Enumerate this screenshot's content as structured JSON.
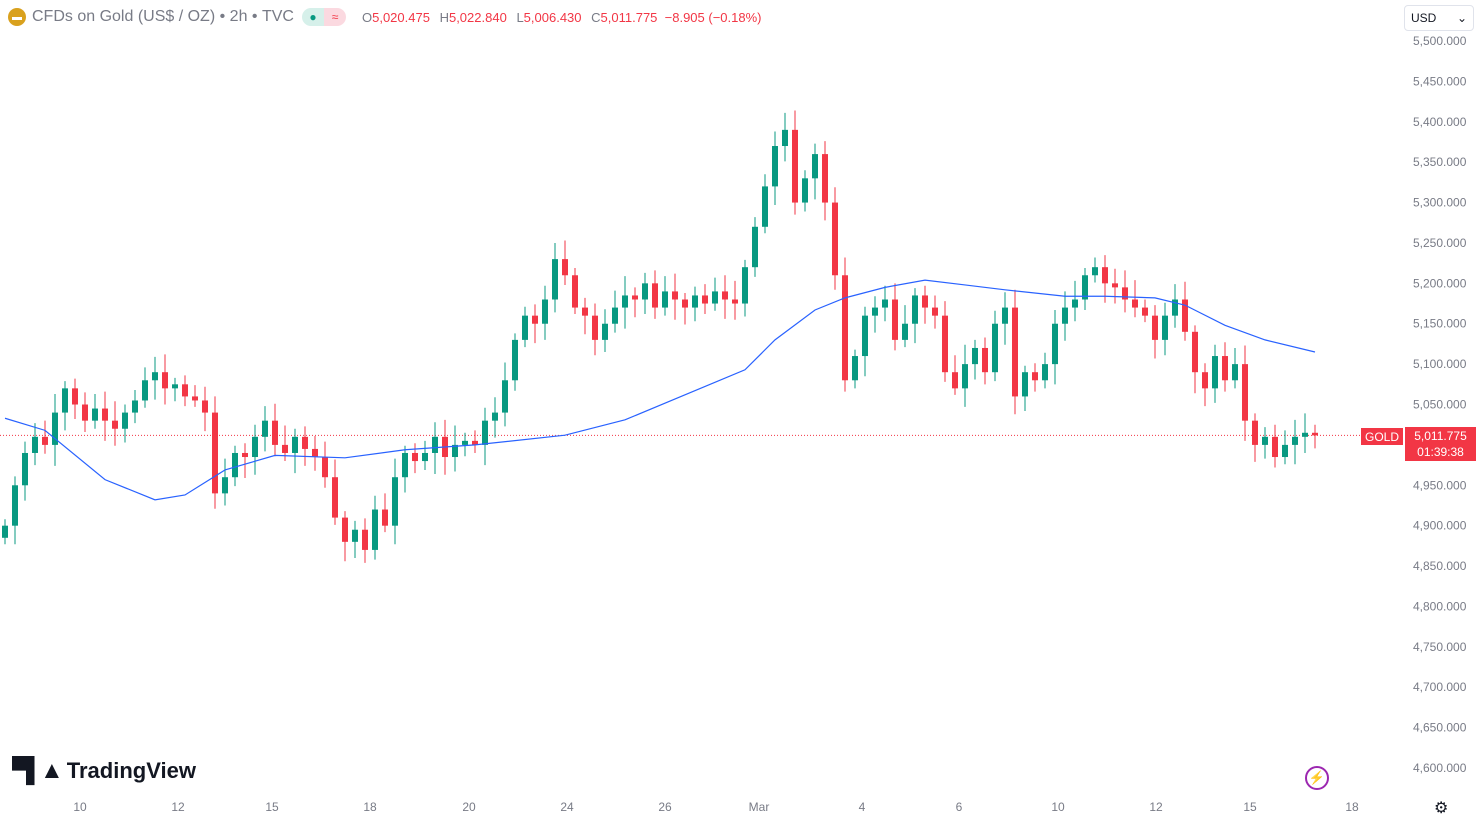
{
  "header": {
    "title": "CFDs on Gold (US$ / OZ)",
    "interval": "2h",
    "source": "TVC",
    "sep": "•",
    "open_label": "O",
    "open": "5,020.475",
    "high_label": "H",
    "high": "5,022.840",
    "low_label": "L",
    "low": "5,006.430",
    "close_label": "C",
    "close": "5,011.775",
    "change": "−8.905 (−0.18%)"
  },
  "currency": "USD",
  "symbol_label": "GOLD",
  "last_price": "5,011.775",
  "countdown": "01:39:38",
  "brand": "TradingView",
  "colors": {
    "up": "#089981",
    "down": "#f23645",
    "ma": "#2962ff",
    "grid_text": "#787b86"
  },
  "chart_data": {
    "type": "candlestick",
    "title": "CFDs on Gold (US$ / OZ) · 2h · TVC",
    "ylim": [
      4580,
      5510
    ],
    "y_ticks": [
      5500,
      5450,
      5400,
      5350,
      5300,
      5250,
      5200,
      5150,
      5100,
      5050,
      4950,
      4900,
      4850,
      4800,
      4750,
      4700,
      4650,
      4600
    ],
    "y_tick_labels": [
      "5,500.000",
      "5,450.000",
      "5,400.000",
      "5,350.000",
      "5,300.000",
      "5,250.000",
      "5,200.000",
      "5,150.000",
      "5,100.000",
      "5,050.000",
      "4,950.000",
      "4,900.000",
      "4,850.000",
      "4,800.000",
      "4,750.000",
      "4,700.000",
      "4,650.000",
      "4,600.000"
    ],
    "x_ticks": [
      {
        "label": "10",
        "at": 7.5
      },
      {
        "label": "12",
        "at": 17.3
      },
      {
        "label": "15",
        "at": 26.7
      },
      {
        "label": "18",
        "at": 36.5
      },
      {
        "label": "20",
        "at": 46.4
      },
      {
        "label": "24",
        "at": 56.2
      },
      {
        "label": "26",
        "at": 66
      },
      {
        "label": "Mar",
        "at": 75.4
      },
      {
        "label": "4",
        "at": 85.7
      },
      {
        "label": "6",
        "at": 95.4
      },
      {
        "label": "10",
        "at": 105.3
      },
      {
        "label": "12",
        "at": 115.1
      },
      {
        "label": "15",
        "at": 124.5
      },
      {
        "label": "18",
        "at": 134.7
      }
    ],
    "close": [
      4900,
      4950,
      4990,
      5010,
      5000,
      5040,
      5070,
      5050,
      5030,
      5045,
      5030,
      5020,
      5040,
      5055,
      5080,
      5090,
      5070,
      5075,
      5060,
      5055,
      5040,
      4940,
      4960,
      4990,
      4985,
      5010,
      5030,
      5000,
      4990,
      5010,
      4995,
      4985,
      4960,
      4910,
      4880,
      4895,
      4870,
      4920,
      4900,
      4960,
      4990,
      4980,
      4990,
      5010,
      4985,
      5000,
      5005,
      5000,
      5030,
      5040,
      5080,
      5130,
      5160,
      5150,
      5180,
      5230,
      5210,
      5170,
      5160,
      5130,
      5150,
      5170,
      5185,
      5180,
      5200,
      5170,
      5190,
      5180,
      5170,
      5185,
      5175,
      5190,
      5180,
      5175,
      5220,
      5270,
      5320,
      5370,
      5390,
      5300,
      5330,
      5360,
      5300,
      5210,
      5080,
      5110,
      5160,
      5170,
      5180,
      5130,
      5150,
      5185,
      5170,
      5160,
      5090,
      5070,
      5100,
      5120,
      5090,
      5150,
      5170,
      5060,
      5090,
      5080,
      5100,
      5150,
      5170,
      5180,
      5210,
      5220,
      5200,
      5195,
      5180,
      5170,
      5160,
      5130,
      5160,
      5180,
      5140,
      5090,
      5070,
      5110,
      5080,
      5100,
      5030,
      5000,
      5010,
      4985,
      5000,
      5010,
      5015,
      5011.775
    ],
    "moving_average": [
      [
        0,
        5033
      ],
      [
        4,
        5018
      ],
      [
        10,
        4957
      ],
      [
        15,
        4932
      ],
      [
        18,
        4938
      ],
      [
        22,
        4969
      ],
      [
        27,
        4987
      ],
      [
        34,
        4984
      ],
      [
        40,
        4994
      ],
      [
        47,
        5000
      ],
      [
        56,
        5012
      ],
      [
        62,
        5031
      ],
      [
        68,
        5062
      ],
      [
        74,
        5093
      ],
      [
        77,
        5130
      ],
      [
        81,
        5167
      ],
      [
        84,
        5182
      ],
      [
        88,
        5195
      ],
      [
        92,
        5204
      ],
      [
        96,
        5198
      ],
      [
        100,
        5192
      ],
      [
        106,
        5184
      ],
      [
        110,
        5184
      ],
      [
        115,
        5182
      ],
      [
        118,
        5173
      ],
      [
        122,
        5148
      ],
      [
        126,
        5130
      ],
      [
        131,
        5115
      ]
    ],
    "last": 5011.775
  }
}
